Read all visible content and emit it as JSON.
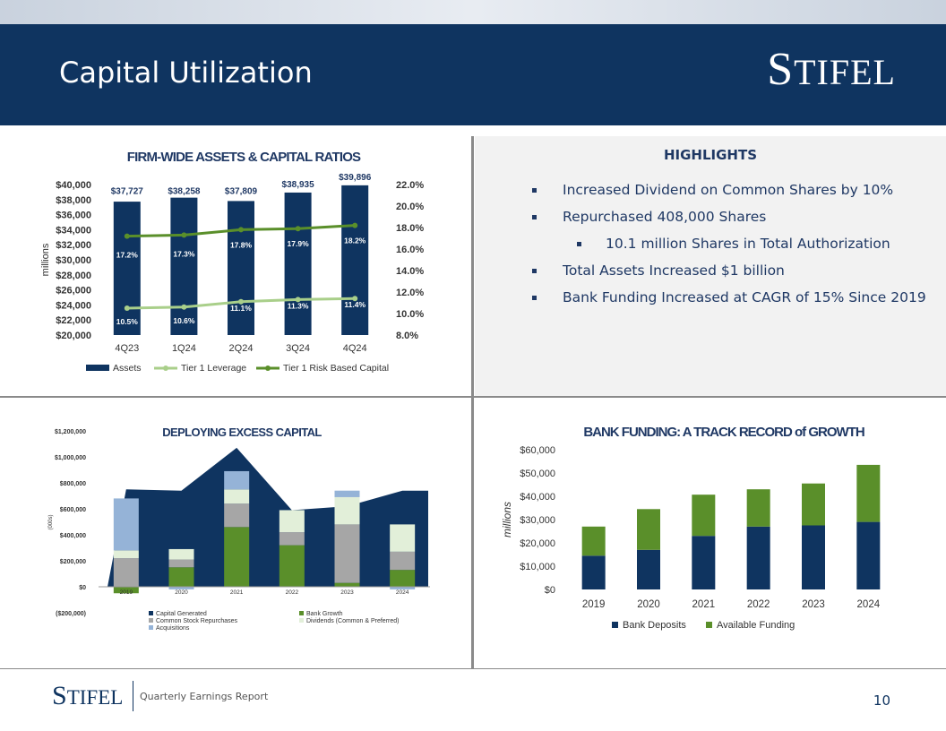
{
  "header": {
    "title": "Capital Utilization",
    "logo_first": "S",
    "logo_rest": "TIFEL"
  },
  "highlights": {
    "title": "HIGHLIGHTS",
    "items": [
      "Increased Dividend on Common Shares by 10%",
      "Repurchased 408,000 Shares",
      "10.1 million Shares in  Total Authorization",
      "Total Assets Increased $1 billion",
      "Bank Funding Increased at CAGR of 15% Since 2019"
    ]
  },
  "footer": {
    "logo_first": "S",
    "logo_rest": "TIFEL",
    "report": "Quarterly Earnings Report",
    "page": "10"
  },
  "chart_data": [
    {
      "type": "bar",
      "title": "FIRM-WIDE ASSETS & CAPITAL RATIOS",
      "ylabel": "millions",
      "categories": [
        "4Q23",
        "1Q24",
        "2Q24",
        "3Q24",
        "4Q24"
      ],
      "ylim": [
        20000,
        40000
      ],
      "y_ticks": [
        "$40,000",
        "$38,000",
        "$36,000",
        "$34,000",
        "$32,000",
        "$30,000",
        "$28,000",
        "$26,000",
        "$24,000",
        "$22,000",
        "$20,000"
      ],
      "y2lim": [
        8,
        22
      ],
      "y2_ticks": [
        "22.0%",
        "20.0%",
        "18.0%",
        "16.0%",
        "14.0%",
        "12.0%",
        "10.0%",
        "8.0%"
      ],
      "series": [
        {
          "name": "Assets",
          "kind": "bar",
          "color": "#0f3460",
          "values": [
            37727,
            38258,
            37809,
            38935,
            39896
          ],
          "labels": [
            "$37,727",
            "$38,258",
            "$37,809",
            "$38,935",
            "$39,896"
          ]
        },
        {
          "name": "Tier 1 Leverage",
          "kind": "line",
          "color": "#a9cf8a",
          "values": [
            10.5,
            10.6,
            11.1,
            11.3,
            11.4
          ],
          "labels": [
            "10.5%",
            "10.6%",
            "11.1%",
            "11.3%",
            "11.4%"
          ]
        },
        {
          "name": "Tier 1 Risk Based Capital",
          "kind": "line",
          "color": "#5a8f2a",
          "values": [
            17.2,
            17.3,
            17.8,
            17.9,
            18.2
          ],
          "labels": [
            "17.2%",
            "17.3%",
            "17.8%",
            "17.9%",
            "18.2%"
          ]
        }
      ]
    },
    {
      "type": "bar",
      "title": "DEPLOYING EXCESS CAPITAL",
      "ylabel": "(000s)",
      "categories": [
        "2019",
        "2020",
        "2021",
        "2022",
        "2023",
        "2024"
      ],
      "ylim": [
        -200000,
        1200000
      ],
      "y_ticks": [
        "$1,200,000",
        "$1,000,000",
        "$800,000",
        "$600,000",
        "$400,000",
        "$200,000",
        "$0",
        "($200,000)"
      ],
      "series": [
        {
          "name": "Capital Generated",
          "kind": "area",
          "color": "#0f3460",
          "values": [
            750000,
            740000,
            1070000,
            590000,
            620000,
            740000
          ]
        },
        {
          "name": "Bank Growth",
          "kind": "stack",
          "color": "#5a8f2a",
          "values": [
            -50000,
            150000,
            460000,
            320000,
            30000,
            130000
          ]
        },
        {
          "name": "Common Stock Repurchases",
          "kind": "stack",
          "color": "#a6a6a6",
          "values": [
            220000,
            60000,
            180000,
            100000,
            450000,
            140000
          ]
        },
        {
          "name": "Dividends (Common & Preferred)",
          "kind": "stack",
          "color": "#e2efd9",
          "values": [
            60000,
            80000,
            110000,
            170000,
            210000,
            210000
          ]
        },
        {
          "name": "Acquisitions",
          "kind": "stack",
          "color": "#95b3d7",
          "values": [
            400000,
            -20000,
            140000,
            0,
            50000,
            -20000
          ]
        }
      ],
      "legend_position": "bottom"
    },
    {
      "type": "bar",
      "title": "BANK FUNDING: A TRACK RECORD of GROWTH",
      "ylabel": "millions",
      "categories": [
        "2019",
        "2020",
        "2021",
        "2022",
        "2023",
        "2024"
      ],
      "ylim": [
        0,
        60000
      ],
      "y_ticks": [
        "$60,000",
        "$50,000",
        "$40,000",
        "$30,000",
        "$20,000",
        "$10,000",
        "$0"
      ],
      "series": [
        {
          "name": "Bank Deposits",
          "color": "#0f3460",
          "values": [
            14500,
            17000,
            23000,
            27000,
            27500,
            29000
          ]
        },
        {
          "name": "Available Funding",
          "color": "#5a8f2a",
          "values": [
            12500,
            17500,
            17700,
            16000,
            18000,
            24500
          ]
        }
      ],
      "legend_position": "bottom"
    }
  ]
}
